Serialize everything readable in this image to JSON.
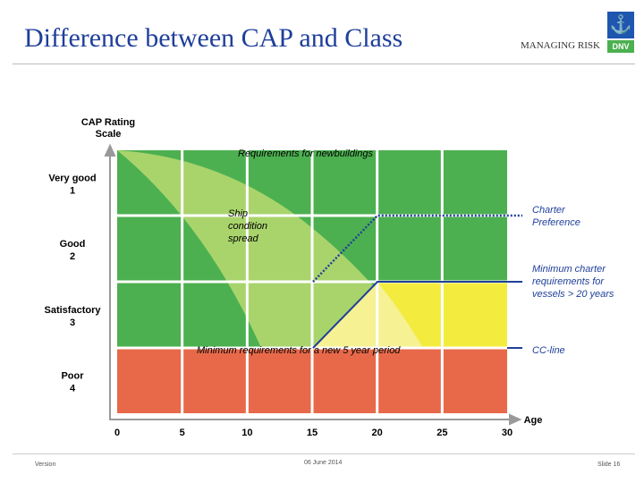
{
  "header": {
    "title": "Difference between CAP and Class",
    "tagline": "MANAGING RISK",
    "logo_text": "DNV"
  },
  "footer": {
    "left": "Version",
    "center": "06 June 2014",
    "right": "Slide 16"
  },
  "diagram": {
    "y_axis_title": [
      "CAP Rating",
      "Scale"
    ],
    "y_categories": [
      [
        "Very good",
        "1"
      ],
      [
        "Good",
        "2"
      ],
      [
        "Satisfactory",
        "3"
      ],
      [
        "Poor",
        "4"
      ]
    ],
    "x_axis_title": "Age",
    "x_ticks": [
      "0",
      "5",
      "10",
      "15",
      "20",
      "25",
      "30"
    ],
    "labels": {
      "newbuildings": "Requirements for newbuildings",
      "spread": [
        "Ship",
        "condition",
        "spread"
      ],
      "min5": "Minimum requirements for a new 5 year period",
      "charter": [
        "Charter",
        "Preference"
      ],
      "mincharter": [
        "Minimum charter",
        "requirements for",
        "vessels > 20 years"
      ],
      "ccline": "CC-line"
    },
    "colors": {
      "dark_green": "#4cb050",
      "light_green": "#a9d46c",
      "yellow": "#f3ec3e",
      "light_yellow": "#f6f29c",
      "red": "#e8694a",
      "blue": "#1f3f9a"
    }
  }
}
